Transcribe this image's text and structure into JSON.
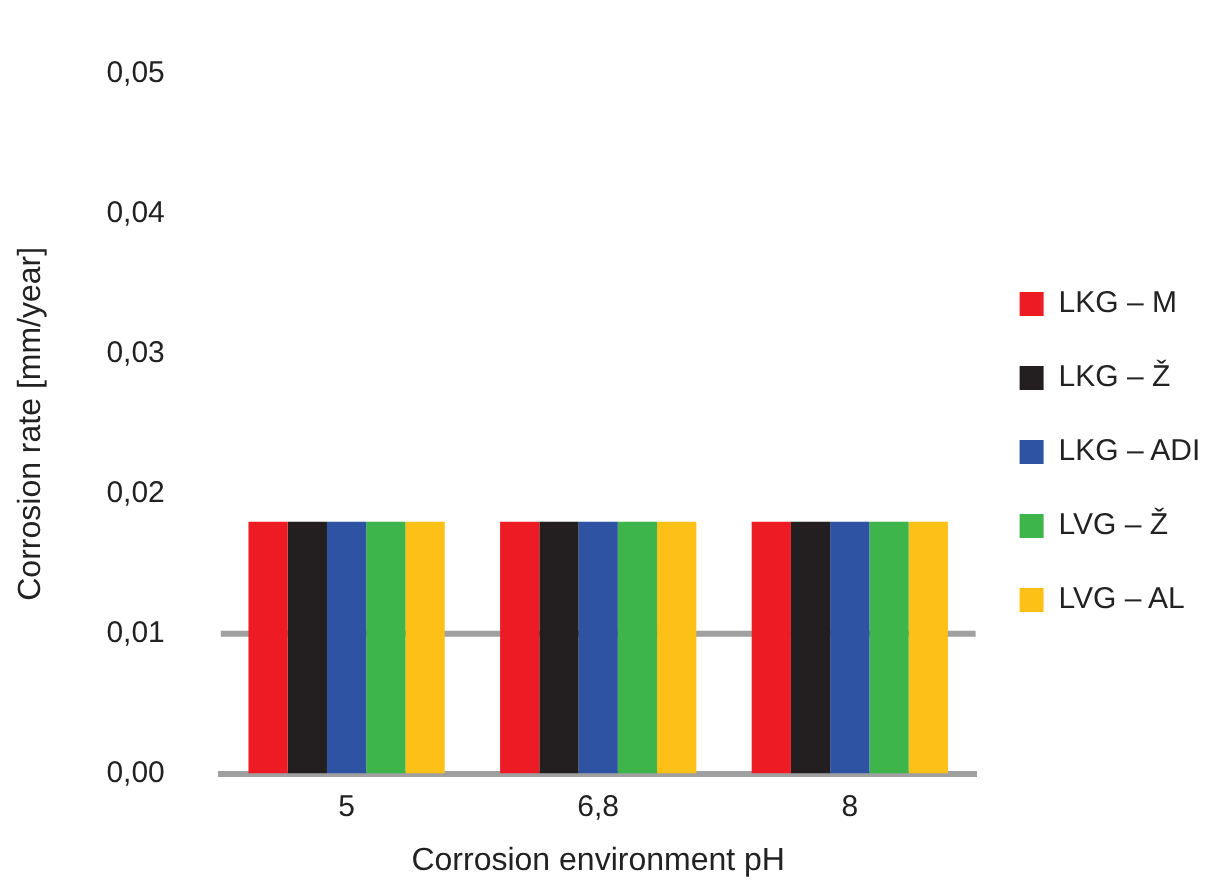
{
  "chart_data": {
    "type": "bar",
    "xlabel": "Corrosion environment pH",
    "ylabel": "Corrosion rate [mm/year]",
    "categories": [
      "5",
      "6,8",
      "8"
    ],
    "series": [
      {
        "name": "LKG – M",
        "color": "#ed1c24",
        "values": [
          0.018,
          0.018,
          0.018
        ]
      },
      {
        "name": "LKG – Ž",
        "color": "#231f20",
        "values": [
          0.018,
          0.018,
          0.018
        ]
      },
      {
        "name": "LKG – ADI",
        "color": "#2e53a3",
        "values": [
          0.018,
          0.018,
          0.018
        ]
      },
      {
        "name": "LVG – Ž",
        "color": "#3db54a",
        "values": [
          0.018,
          0.018,
          0.018
        ]
      },
      {
        "name": "LVG – AL",
        "color": "#fcc016",
        "values": [
          0.018,
          0.018,
          0.018
        ]
      }
    ],
    "ylim": [
      0,
      0.05
    ],
    "yticks": [
      {
        "value": 0,
        "label": "0,00"
      },
      {
        "value": 0.01,
        "label": "0,01"
      },
      {
        "value": 0.02,
        "label": "0,02"
      },
      {
        "value": 0.03,
        "label": "0,03"
      },
      {
        "value": 0.04,
        "label": "0,04"
      },
      {
        "value": 0.05,
        "label": "0,05"
      }
    ],
    "ref_lines": [
      {
        "axis": "y",
        "value": 0.01,
        "color": "#a0a0a0"
      }
    ],
    "grid": false,
    "legend": "right"
  }
}
